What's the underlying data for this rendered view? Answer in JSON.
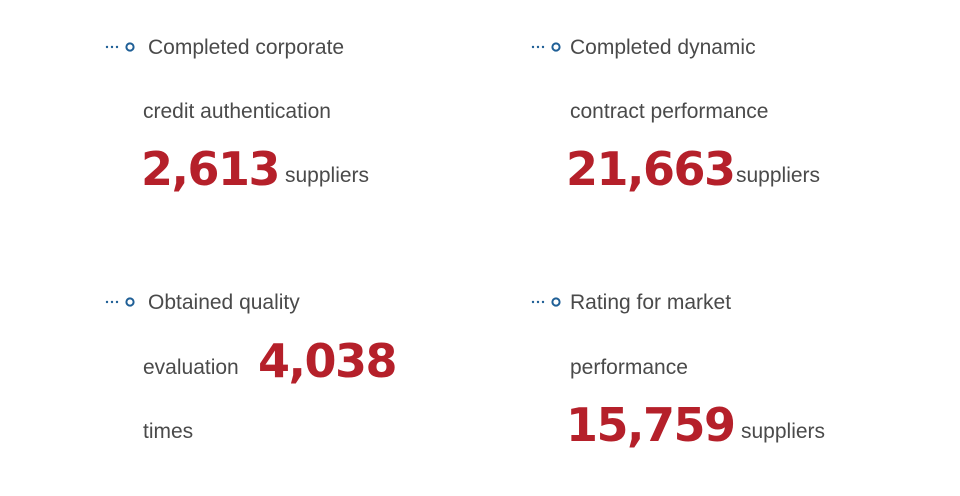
{
  "colors": {
    "accent_number": "#b5202a",
    "marker": "#1f5f96",
    "text": "#4a4a4a"
  },
  "stats": [
    {
      "line1": "Completed corporate",
      "line2": "credit authentication",
      "number": "2,613",
      "unit": "suppliers",
      "icon": "dotted-circle-bullet-icon"
    },
    {
      "line1": "Completed dynamic",
      "line2": "contract performance",
      "number": "21,663",
      "unit": "suppliers",
      "icon": "dotted-circle-bullet-icon"
    },
    {
      "line1": "Obtained quality",
      "line2": "evaluation",
      "number": "4,038",
      "unit": "times",
      "icon": "dotted-circle-bullet-icon"
    },
    {
      "line1": "Rating for market",
      "line2": "performance",
      "number": "15,759",
      "unit": "suppliers",
      "icon": "dotted-circle-bullet-icon"
    }
  ]
}
